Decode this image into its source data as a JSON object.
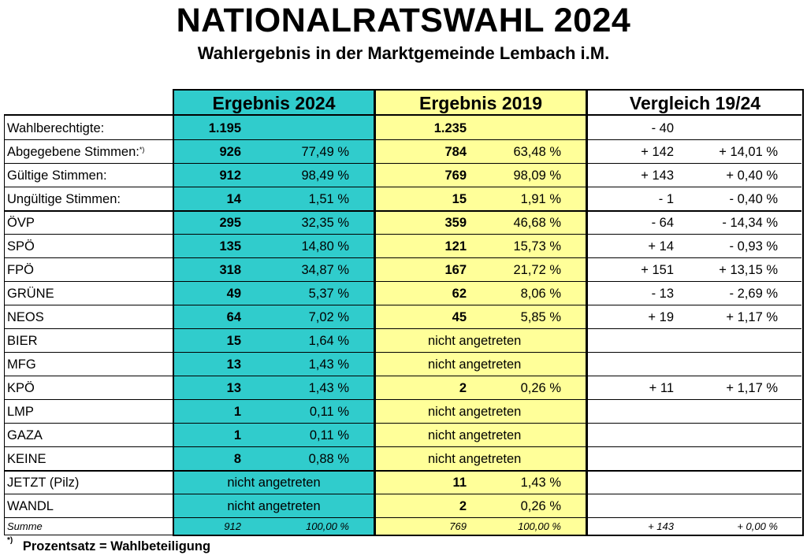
{
  "title": "NATIONALRATSWAHL 2024",
  "subtitle": "Wahlergebnis in der Marktgemeinde Lembach i.M.",
  "headers": {
    "h2024": "Ergebnis 2024",
    "h2019": "Ergebnis 2019",
    "hcmp": "Vergleich 19/24"
  },
  "footnote": {
    "mark": "*)",
    "text": "Prozentsatz = Wahlbeteiligung"
  },
  "colors": {
    "col2024": "#30cccc",
    "col2019": "#ffff99"
  },
  "rows": [
    {
      "label": "Wahlberechtigte:",
      "n24": "1.195",
      "p24": "",
      "n19": "1.235",
      "p19": "",
      "dn": "- 40",
      "dp": ""
    },
    {
      "label": "Abgegebene Stimmen:",
      "mark": "*)",
      "n24": "926",
      "p24": "77,49 %",
      "n19": "784",
      "p19": "63,48 %",
      "dn": "+ 142",
      "dp": "+ 14,01 %"
    },
    {
      "label": "Gültige Stimmen:",
      "n24": "912",
      "p24": "98,49 %",
      "n19": "769",
      "p19": "98,09 %",
      "dn": "+ 143",
      "dp": "+ 0,40 %"
    },
    {
      "label": "Ungültige Stimmen:",
      "n24": "14",
      "p24": "1,51 %",
      "n19": "15",
      "p19": "1,91 %",
      "dn": "- 1",
      "dp": "- 0,40 %"
    },
    {
      "label": "ÖVP",
      "n24": "295",
      "p24": "32,35 %",
      "n19": "359",
      "p19": "46,68 %",
      "dn": "- 64",
      "dp": "- 14,34 %"
    },
    {
      "label": "SPÖ",
      "n24": "135",
      "p24": "14,80 %",
      "n19": "121",
      "p19": "15,73 %",
      "dn": "+ 14",
      "dp": "- 0,93 %"
    },
    {
      "label": "FPÖ",
      "n24": "318",
      "p24": "34,87 %",
      "n19": "167",
      "p19": "21,72 %",
      "dn": "+ 151",
      "dp": "+ 13,15 %"
    },
    {
      "label": "GRÜNE",
      "n24": "49",
      "p24": "5,37 %",
      "n19": "62",
      "p19": "8,06 %",
      "dn": "- 13",
      "dp": "- 2,69 %"
    },
    {
      "label": "NEOS",
      "n24": "64",
      "p24": "7,02 %",
      "n19": "45",
      "p19": "5,85 %",
      "dn": "+ 19",
      "dp": "+ 1,17 %"
    },
    {
      "label": "BIER",
      "n24": "15",
      "p24": "1,64 %",
      "na19": "nicht angetreten",
      "dn": "",
      "dp": ""
    },
    {
      "label": "MFG",
      "n24": "13",
      "p24": "1,43 %",
      "na19": "nicht angetreten",
      "dn": "",
      "dp": ""
    },
    {
      "label": "KPÖ",
      "n24": "13",
      "p24": "1,43 %",
      "n19": "2",
      "p19": "0,26 %",
      "dn": "+ 11",
      "dp": "+ 1,17 %"
    },
    {
      "label": "LMP",
      "n24": "1",
      "p24": "0,11 %",
      "na19": "nicht angetreten",
      "dn": "",
      "dp": ""
    },
    {
      "label": "GAZA",
      "n24": "1",
      "p24": "0,11 %",
      "na19": "nicht angetreten",
      "dn": "",
      "dp": ""
    },
    {
      "label": "KEINE",
      "n24": "8",
      "p24": "0,88 %",
      "na19": "nicht angetreten",
      "dn": "",
      "dp": ""
    },
    {
      "label": "JETZT (Pilz)",
      "na24": "nicht angetreten",
      "n19": "11",
      "p19": "1,43 %",
      "dn": "",
      "dp": ""
    },
    {
      "label": "WANDL",
      "na24": "nicht angetreten",
      "n19": "2",
      "p19": "0,26 %",
      "dn": "",
      "dp": ""
    }
  ],
  "sum": {
    "label": "Summe",
    "n24": "912",
    "p24": "100,00 %",
    "n19": "769",
    "p19": "100,00 %",
    "dn": "+ 143",
    "dp": "+ 0,00 %"
  }
}
